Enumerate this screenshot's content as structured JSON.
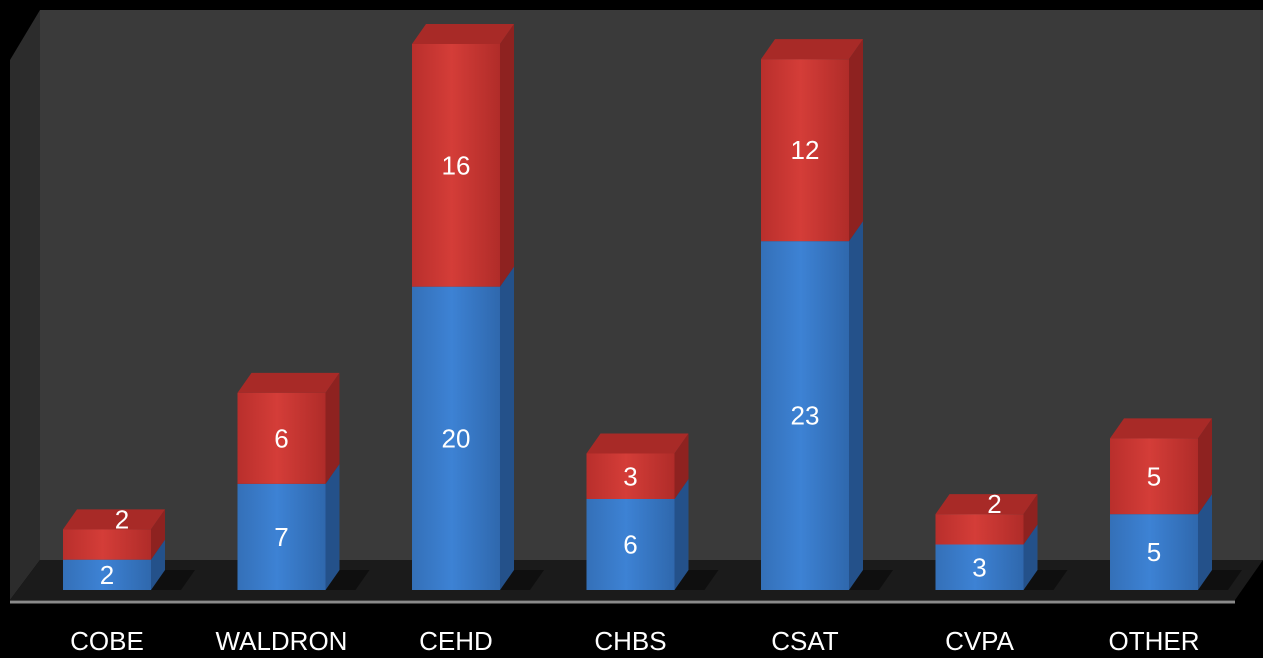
{
  "chart_data": {
    "type": "bar",
    "stacked": true,
    "three_d": true,
    "categories": [
      "COBE",
      "WALDRON",
      "CEHD",
      "CHBS",
      "CSAT",
      "CVPA",
      "OTHER"
    ],
    "series": [
      {
        "values": [
          2,
          7,
          20,
          6,
          23,
          3,
          5
        ],
        "color": "#3a7fd0"
      },
      {
        "values": [
          2,
          6,
          16,
          3,
          12,
          2,
          5
        ],
        "color": "#d23a36"
      }
    ],
    "ylim": [
      0,
      36
    ],
    "grid": false,
    "legend": "none",
    "title": "",
    "xlabel": "",
    "ylabel": "",
    "colors": {
      "background": "#000000",
      "wall": "#3a3a3a",
      "floor": "#1b1b1b",
      "floor_edge": "#8a8a8a",
      "label": "#ffffff"
    }
  }
}
